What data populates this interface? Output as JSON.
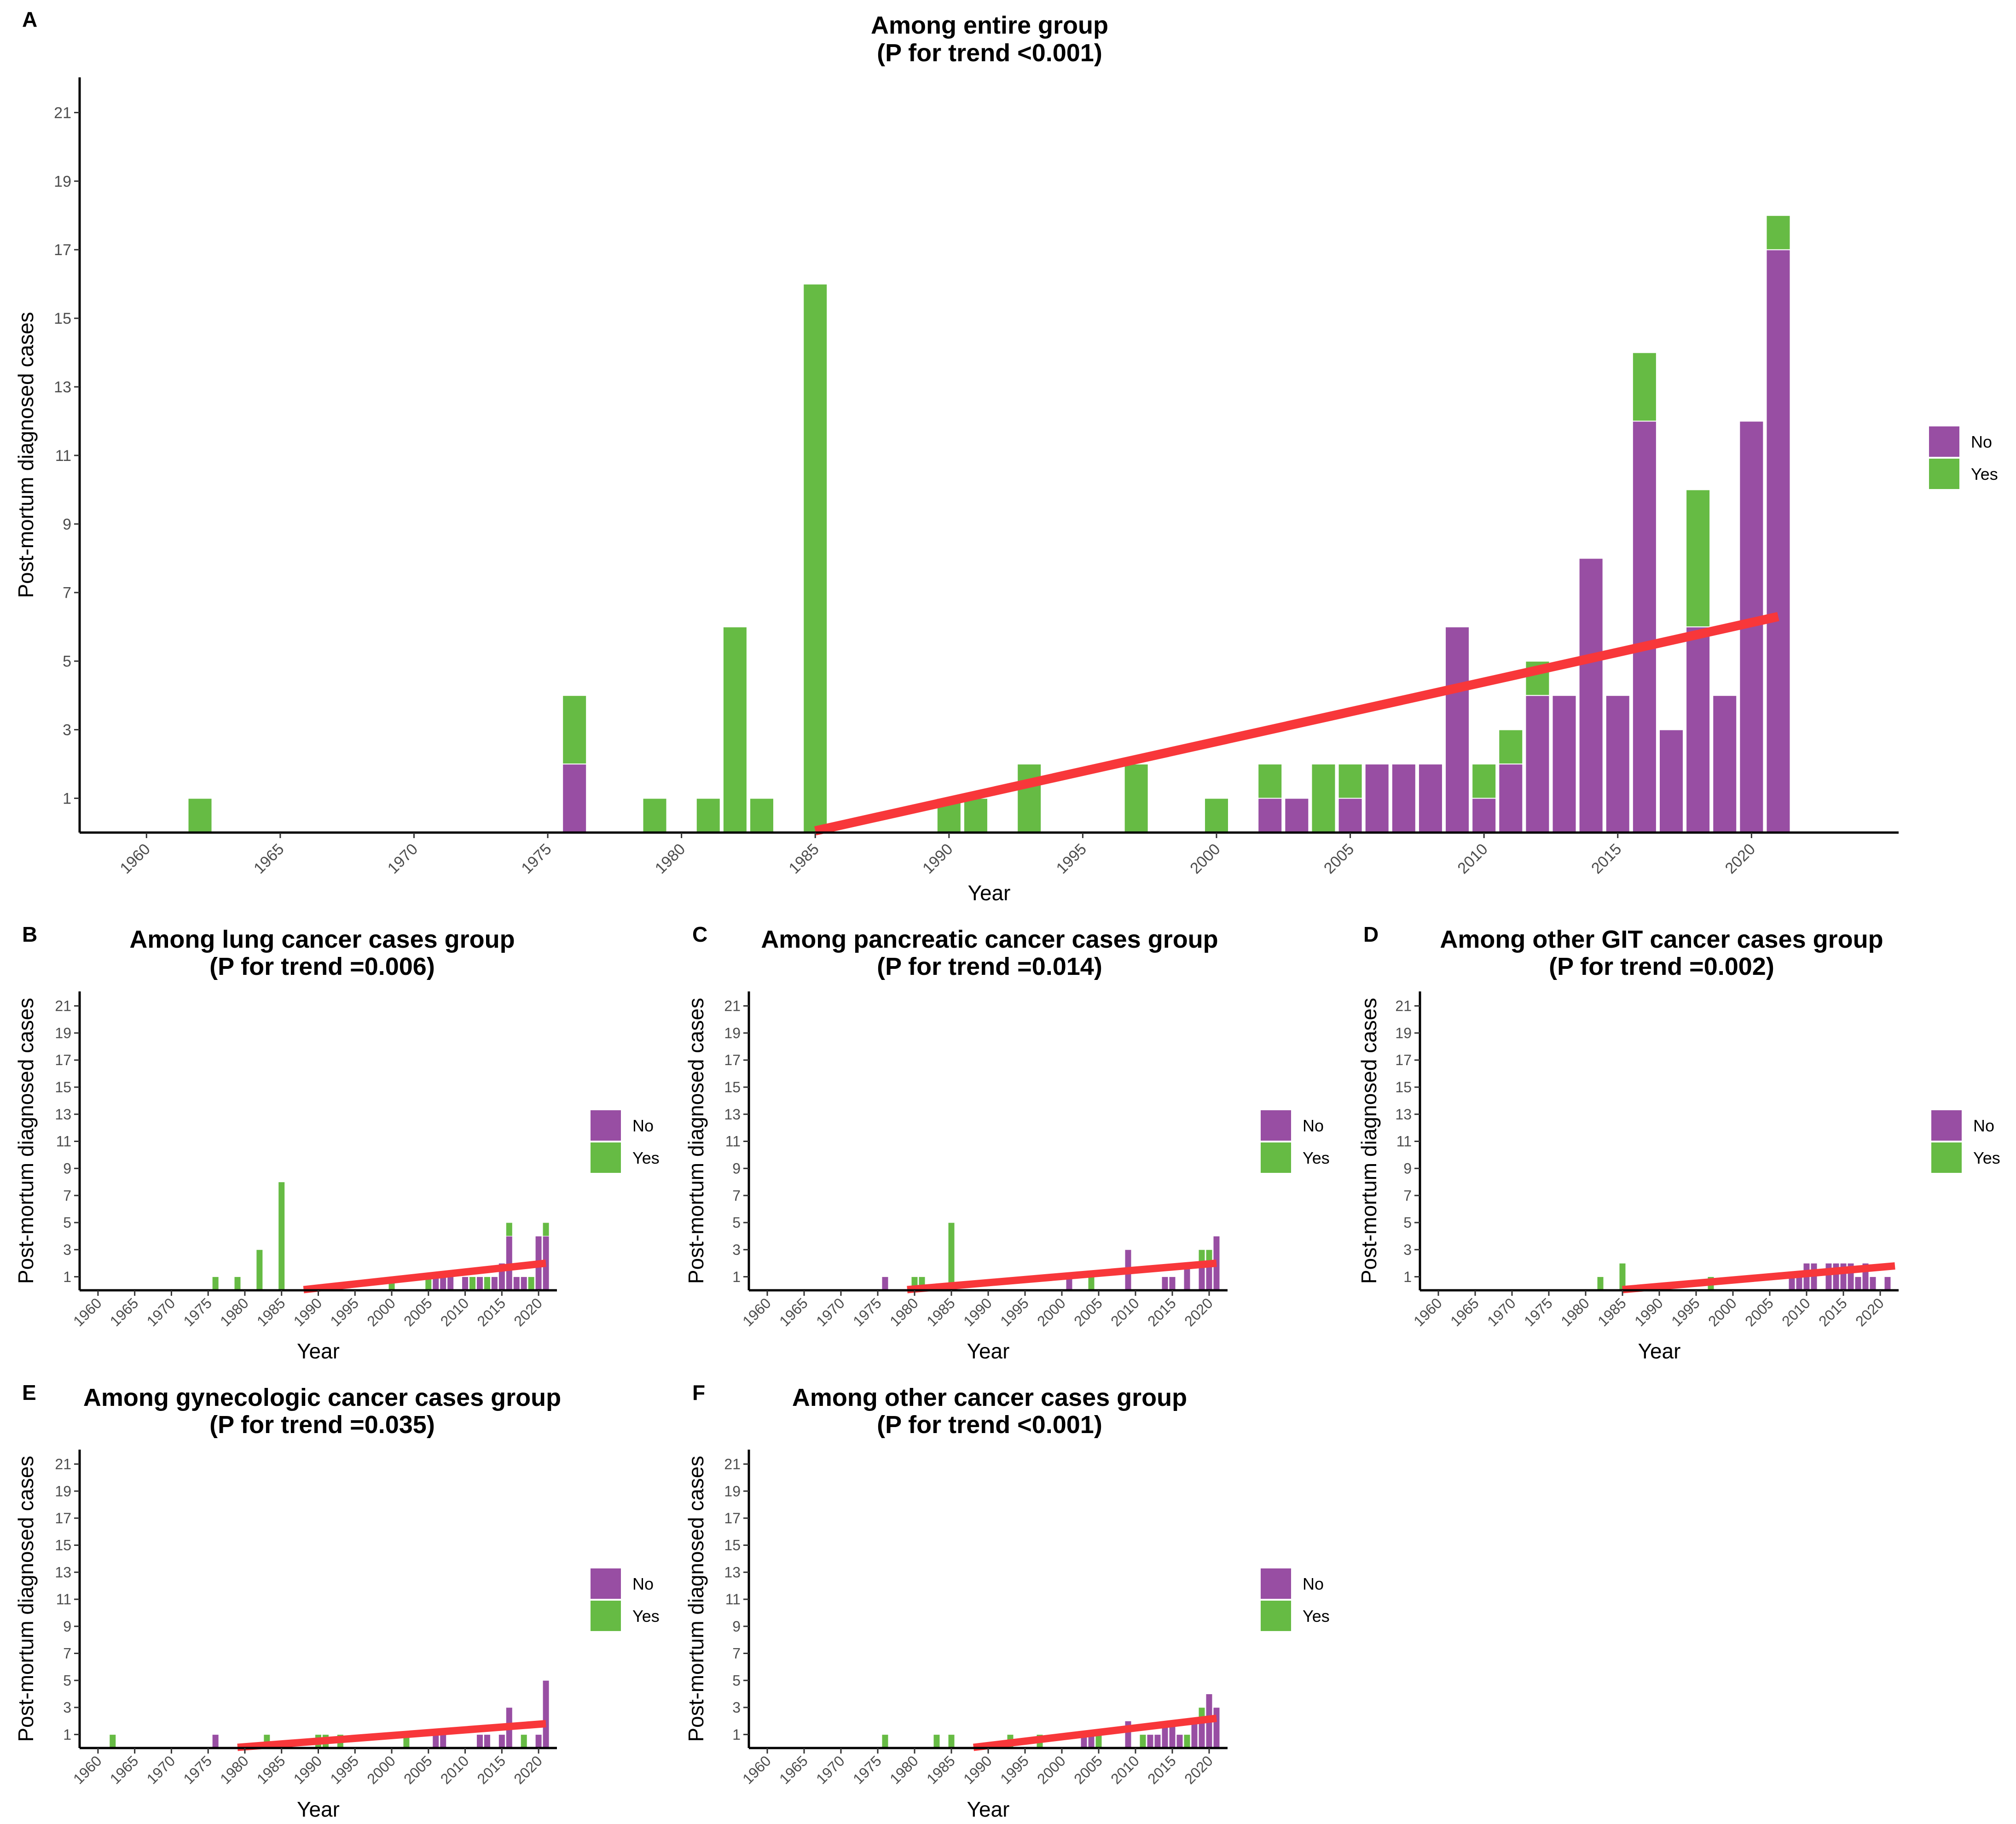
{
  "colors": {
    "no": "#984EA3",
    "yes": "#66BB44",
    "trend": "#F8373A",
    "axis": "#000000"
  },
  "y_axis_label": "Post-mortum diagnosed cases",
  "x_axis_label": "Year",
  "legend": {
    "no_label": "No",
    "yes_label": "Yes"
  },
  "chart_data": [
    {
      "id": "A",
      "type": "bar",
      "stacked": true,
      "title": [
        "Among entire group",
        "(P for trend <0.001)"
      ],
      "xlabel": "Year",
      "ylabel": "Post-mortum diagnosed cases",
      "xlim": [
        1957.5,
        2025.5
      ],
      "ylim": [
        0,
        22
      ],
      "xticks": [
        1960,
        1965,
        1970,
        1975,
        1980,
        1985,
        1990,
        1995,
        2000,
        2005,
        2010,
        2015,
        2020
      ],
      "yticks": [
        1,
        3,
        5,
        7,
        9,
        11,
        13,
        15,
        17,
        19,
        21
      ],
      "series": [
        {
          "name": "No",
          "x": [
            1976,
            2002,
            2003,
            2005,
            2006,
            2007,
            2008,
            2009,
            2010,
            2011,
            2012,
            2013,
            2014,
            2015,
            2016,
            2017,
            2018,
            2019,
            2020,
            2021
          ],
          "values": [
            2,
            1,
            1,
            1,
            2,
            2,
            2,
            6,
            1,
            2,
            4,
            4,
            8,
            4,
            12,
            3,
            6,
            4,
            12,
            17
          ]
        },
        {
          "name": "Yes",
          "x": [
            1962,
            1976,
            1979,
            1981,
            1982,
            1983,
            1985,
            1990,
            1991,
            1993,
            1997,
            2000,
            2002,
            2004,
            2005,
            2010,
            2011,
            2012,
            2016,
            2018,
            2021
          ],
          "values": [
            1,
            2,
            1,
            1,
            6,
            1,
            16,
            1,
            1,
            2,
            2,
            1,
            1,
            2,
            1,
            1,
            1,
            1,
            2,
            4,
            1
          ]
        }
      ],
      "trend": {
        "x": [
          1985,
          2021
        ],
        "y": [
          0.05,
          6.3
        ]
      }
    },
    {
      "id": "B",
      "type": "bar",
      "stacked": true,
      "title": [
        "Among lung cancer cases group",
        "(P for trend =0.006)"
      ],
      "xlabel": "Year",
      "ylabel": "Post-mortum diagnosed cases",
      "xlim": [
        1957.5,
        2022.5
      ],
      "ylim": [
        0,
        22
      ],
      "xticks": [
        1960,
        1965,
        1970,
        1975,
        1980,
        1985,
        1990,
        1995,
        2000,
        2005,
        2010,
        2015,
        2020
      ],
      "yticks": [
        1,
        3,
        5,
        7,
        9,
        11,
        13,
        15,
        17,
        19,
        21
      ],
      "series": [
        {
          "name": "No",
          "x": [
            2006,
            2007,
            2008,
            2010,
            2012,
            2014,
            2015,
            2016,
            2017,
            2018,
            2020,
            2021
          ],
          "values": [
            1,
            1,
            1,
            1,
            1,
            1,
            2,
            4,
            1,
            1,
            4,
            4
          ]
        },
        {
          "name": "Yes",
          "x": [
            1976,
            1979,
            1982,
            1985,
            2000,
            2005,
            2011,
            2013,
            2016,
            2019,
            2021
          ],
          "values": [
            1,
            1,
            3,
            8,
            1,
            1,
            1,
            1,
            1,
            1,
            1
          ]
        }
      ],
      "trend": {
        "x": [
          1988,
          2021
        ],
        "y": [
          0.05,
          2.0
        ]
      }
    },
    {
      "id": "C",
      "type": "bar",
      "stacked": true,
      "title": [
        "Among pancreatic cancer cases group",
        "(P for trend =0.014)"
      ],
      "xlabel": "Year",
      "ylabel": "Post-mortum diagnosed cases",
      "xlim": [
        1957.5,
        2022.5
      ],
      "ylim": [
        0,
        22
      ],
      "xticks": [
        1960,
        1965,
        1970,
        1975,
        1980,
        1985,
        1990,
        1995,
        2000,
        2005,
        2010,
        2015,
        2020
      ],
      "yticks": [
        1,
        3,
        5,
        7,
        9,
        11,
        13,
        15,
        17,
        19,
        21
      ],
      "series": [
        {
          "name": "No",
          "x": [
            1976,
            2001,
            2009,
            2014,
            2015,
            2017,
            2019,
            2020,
            2021
          ],
          "values": [
            1,
            1,
            3,
            1,
            1,
            2,
            2,
            2,
            4
          ]
        },
        {
          "name": "Yes",
          "x": [
            1980,
            1981,
            1985,
            2004,
            2019,
            2020
          ],
          "values": [
            1,
            1,
            5,
            1,
            1,
            1
          ]
        }
      ],
      "trend": {
        "x": [
          1979,
          2021
        ],
        "y": [
          0.05,
          2.0
        ]
      }
    },
    {
      "id": "D",
      "type": "bar",
      "stacked": true,
      "title": [
        "Among other GIT cancer cases group",
        "(P for trend =0.002)"
      ],
      "xlabel": "Year",
      "ylabel": "Post-mortum diagnosed cases",
      "xlim": [
        1957.5,
        2022.5
      ],
      "ylim": [
        0,
        22
      ],
      "xticks": [
        1960,
        1965,
        1970,
        1975,
        1980,
        1985,
        1990,
        1995,
        2000,
        2005,
        2010,
        2015,
        2020
      ],
      "yticks": [
        1,
        3,
        5,
        7,
        9,
        11,
        13,
        15,
        17,
        19,
        21
      ],
      "series": [
        {
          "name": "No",
          "x": [
            2008,
            2009,
            2010,
            2011,
            2013,
            2014,
            2015,
            2016,
            2017,
            2018,
            2019,
            2021
          ],
          "values": [
            1,
            1,
            2,
            2,
            2,
            2,
            2,
            2,
            1,
            2,
            1,
            1
          ]
        },
        {
          "name": "Yes",
          "x": [
            1982,
            1985,
            1997
          ],
          "values": [
            1,
            2,
            1
          ]
        }
      ],
      "trend": {
        "x": [
          1985,
          2022
        ],
        "y": [
          0.05,
          1.8
        ]
      }
    },
    {
      "id": "E",
      "type": "bar",
      "stacked": true,
      "title": [
        "Among gynecologic cancer cases group",
        "(P for trend =0.035)"
      ],
      "xlabel": "Year",
      "ylabel": "Post-mortum diagnosed cases",
      "xlim": [
        1957.5,
        2022.5
      ],
      "ylim": [
        0,
        22
      ],
      "xticks": [
        1960,
        1965,
        1970,
        1975,
        1980,
        1985,
        1990,
        1995,
        2000,
        2005,
        2010,
        2015,
        2020
      ],
      "yticks": [
        1,
        3,
        5,
        7,
        9,
        11,
        13,
        15,
        17,
        19,
        21
      ],
      "series": [
        {
          "name": "No",
          "x": [
            1976,
            2006,
            2007,
            2012,
            2013,
            2015,
            2016,
            2020,
            2021
          ],
          "values": [
            1,
            1,
            1,
            1,
            1,
            1,
            3,
            1,
            5
          ]
        },
        {
          "name": "Yes",
          "x": [
            1962,
            1983,
            1990,
            1991,
            1993,
            2002,
            2018
          ],
          "values": [
            1,
            1,
            1,
            1,
            1,
            1,
            1
          ]
        }
      ],
      "trend": {
        "x": [
          1979,
          2021
        ],
        "y": [
          0.05,
          1.8
        ]
      }
    },
    {
      "id": "F",
      "type": "bar",
      "stacked": true,
      "title": [
        "Among other cancer cases group",
        "(P for trend <0.001)"
      ],
      "xlabel": "Year",
      "ylabel": "Post-mortum diagnosed cases",
      "xlim": [
        1957.5,
        2022.5
      ],
      "ylim": [
        0,
        22
      ],
      "xticks": [
        1960,
        1965,
        1970,
        1975,
        1980,
        1985,
        1990,
        1995,
        2000,
        2005,
        2010,
        2015,
        2020
      ],
      "yticks": [
        1,
        3,
        5,
        7,
        9,
        11,
        13,
        15,
        17,
        19,
        21
      ],
      "series": [
        {
          "name": "No",
          "x": [
            2003,
            2004,
            2009,
            2012,
            2013,
            2014,
            2015,
            2016,
            2018,
            2019,
            2020,
            2021
          ],
          "values": [
            1,
            1,
            2,
            1,
            1,
            2,
            2,
            1,
            2,
            2,
            4,
            3
          ]
        },
        {
          "name": "Yes",
          "x": [
            1976,
            1983,
            1985,
            1993,
            1997,
            2005,
            2011,
            2017,
            2019
          ],
          "values": [
            1,
            1,
            1,
            1,
            1,
            1,
            1,
            1,
            1
          ]
        }
      ],
      "trend": {
        "x": [
          1988,
          2021
        ],
        "y": [
          0.05,
          2.2
        ]
      }
    }
  ]
}
